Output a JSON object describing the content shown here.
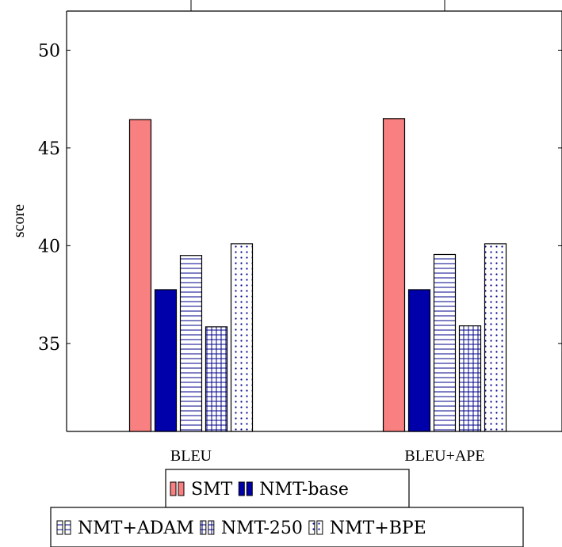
{
  "chart_data": {
    "type": "bar",
    "ylabel": "score",
    "xlabel": "",
    "ylim": [
      30.5,
      52
    ],
    "yticks": [
      35,
      40,
      45,
      50
    ],
    "categories": [
      "BLEU",
      "BLEU+APE"
    ],
    "series": [
      {
        "name": "SMT",
        "values": [
          46.45,
          46.5
        ],
        "color": "#f88080",
        "pattern": "solid-red"
      },
      {
        "name": "NMT-base",
        "values": [
          37.75,
          37.75
        ],
        "color": "#0000aa",
        "pattern": "solid-blue"
      },
      {
        "name": "NMT+ADAM",
        "values": [
          39.5,
          39.55
        ],
        "color": "#00008b",
        "pattern": "horizontal-lines"
      },
      {
        "name": "NMT-250",
        "values": [
          35.85,
          35.9
        ],
        "color": "#00008b",
        "pattern": "grid"
      },
      {
        "name": "NMT+BPE",
        "values": [
          40.1,
          40.1
        ],
        "color": "#00008b",
        "pattern": "dots"
      }
    ],
    "legend": {
      "rows": [
        [
          "SMT",
          "NMT-base"
        ],
        [
          "NMT+ADAM",
          "NMT-250",
          "NMT+BPE"
        ]
      ],
      "placement": "bottom"
    },
    "grid": false
  }
}
